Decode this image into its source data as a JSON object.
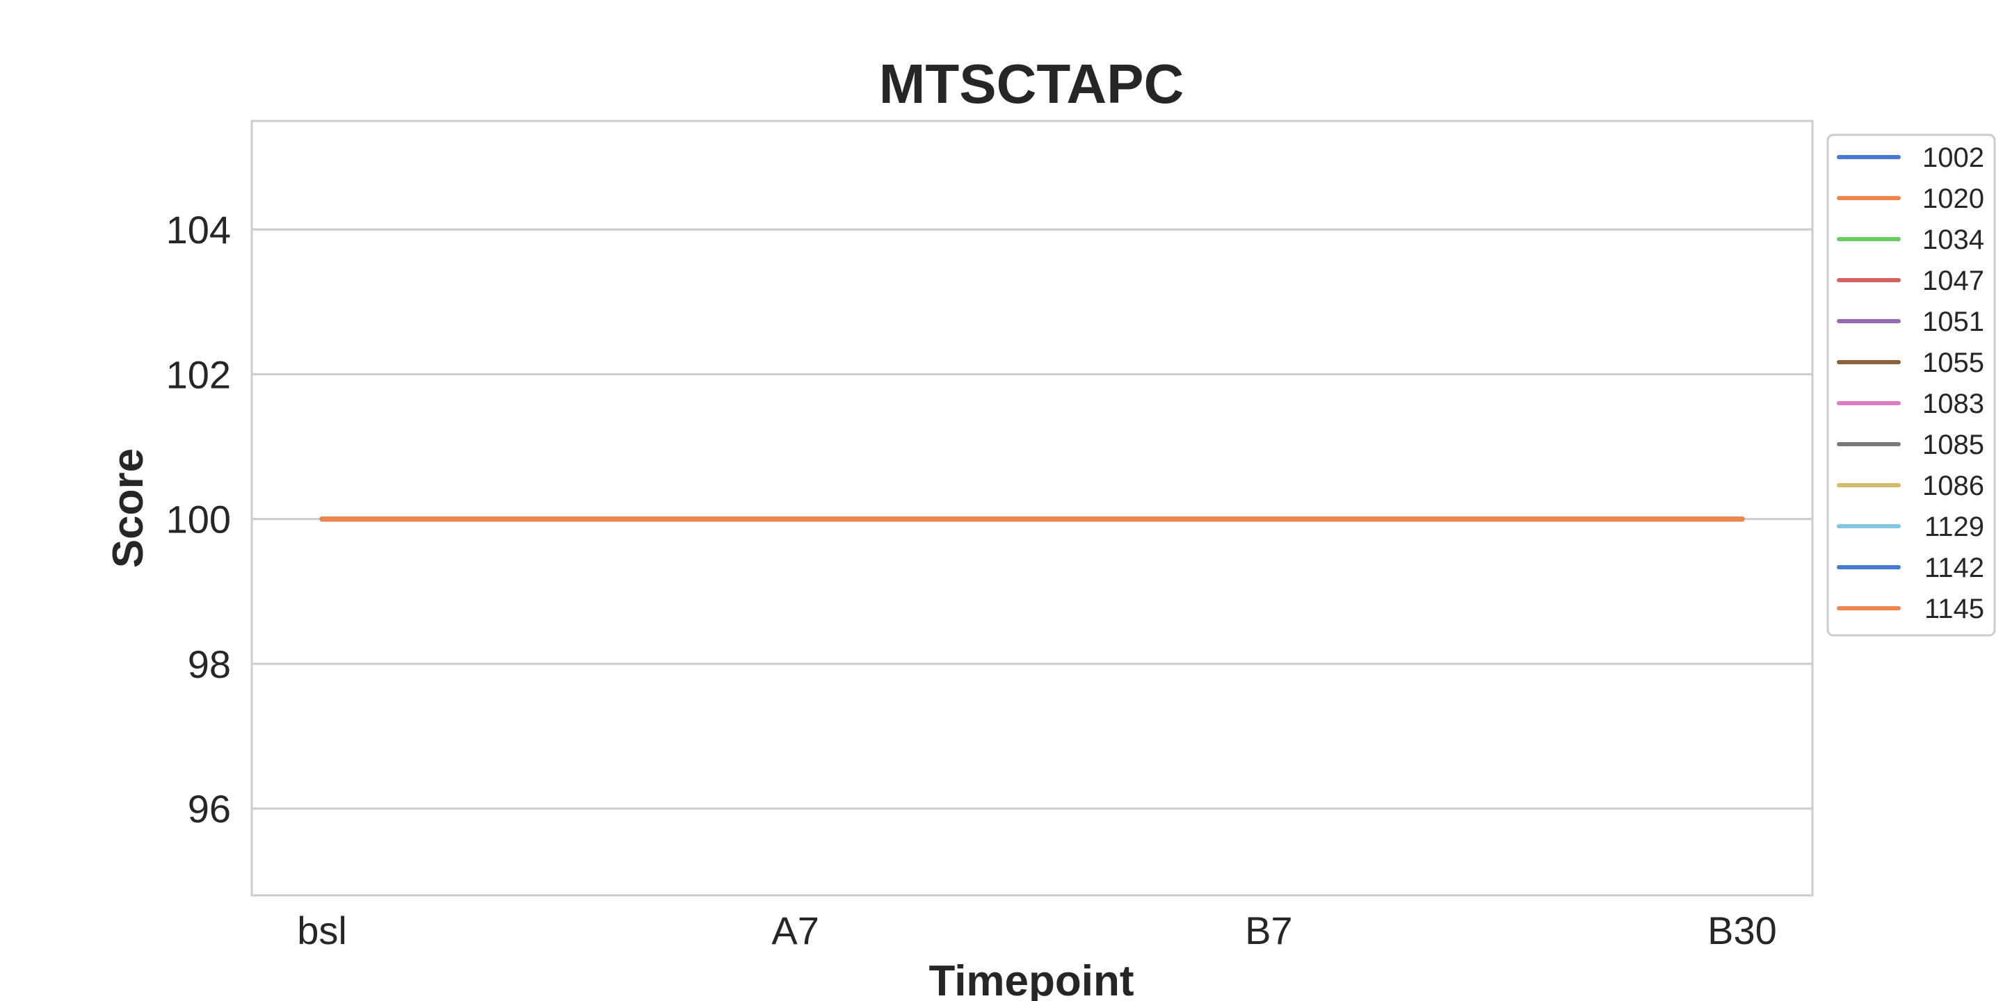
{
  "chart_data": {
    "type": "line",
    "title": "MTSCTAPC",
    "xlabel": "Timepoint",
    "ylabel": "Score",
    "categories": [
      "bsl",
      "A7",
      "B7",
      "B30"
    ],
    "ylim": [
      94.8,
      105.5
    ],
    "yticks": [
      96,
      98,
      100,
      102,
      104
    ],
    "grid": "horizontal",
    "legend_position": "right, outside plot",
    "series": [
      {
        "name": "1002",
        "color": "#4878d0",
        "values": [
          100,
          100,
          100,
          100
        ]
      },
      {
        "name": "1020",
        "color": "#ee854a",
        "values": [
          100,
          100,
          100,
          100
        ]
      },
      {
        "name": "1034",
        "color": "#6acc64",
        "values": [
          100,
          100,
          100,
          100
        ]
      },
      {
        "name": "1047",
        "color": "#d65f5f",
        "values": [
          100,
          100,
          100,
          100
        ]
      },
      {
        "name": "1051",
        "color": "#956cb4",
        "values": [
          100,
          100,
          100,
          100
        ]
      },
      {
        "name": "1055",
        "color": "#8c613c",
        "values": [
          100,
          100,
          100,
          100
        ]
      },
      {
        "name": "1083",
        "color": "#dc7ec0",
        "values": [
          100,
          100,
          100,
          100
        ]
      },
      {
        "name": "1085",
        "color": "#797979",
        "values": [
          100,
          100,
          100,
          100
        ]
      },
      {
        "name": "1086",
        "color": "#d5bb67",
        "values": [
          100,
          100,
          100,
          100
        ]
      },
      {
        "name": "1129",
        "color": "#82c6e2",
        "values": [
          100,
          100,
          100,
          100
        ]
      },
      {
        "name": "1142",
        "color": "#4878d0",
        "values": [
          100,
          100,
          100,
          100
        ]
      },
      {
        "name": "1145",
        "color": "#ee854a",
        "values": [
          100,
          100,
          100,
          100
        ]
      }
    ]
  }
}
